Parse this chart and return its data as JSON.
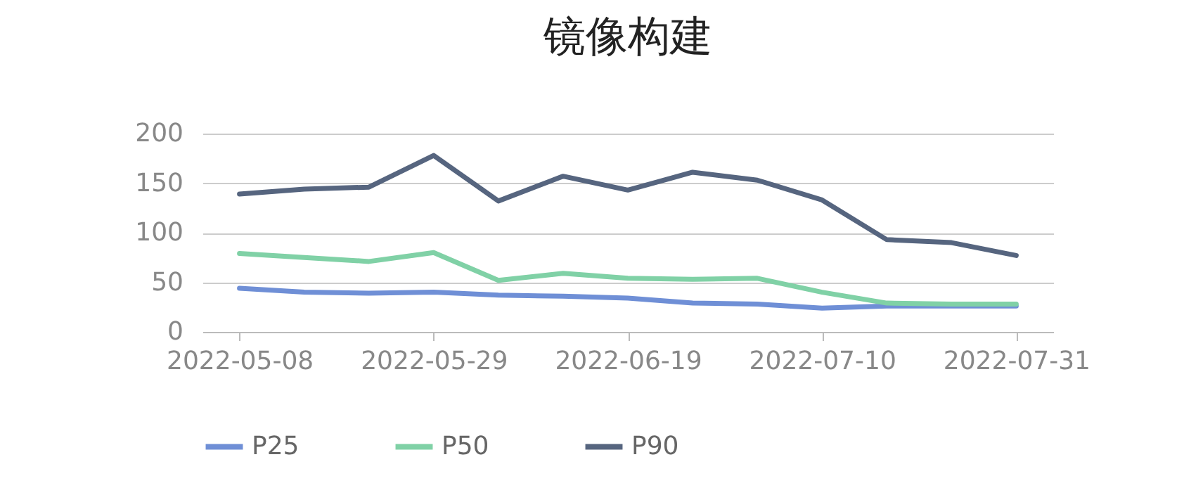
{
  "chart_data": {
    "type": "line",
    "title": "镜像构建",
    "x": [
      "2022-05-08",
      "2022-05-15",
      "2022-05-22",
      "2022-05-29",
      "2022-06-05",
      "2022-06-12",
      "2022-06-19",
      "2022-06-26",
      "2022-07-03",
      "2022-07-10",
      "2022-07-17",
      "2022-07-24",
      "2022-07-31"
    ],
    "series": [
      {
        "name": "P25",
        "color": "#6f8fd6",
        "values": [
          44,
          40,
          39,
          40,
          37,
          36,
          34,
          29,
          28,
          24,
          26,
          26,
          26
        ]
      },
      {
        "name": "P50",
        "color": "#80d1a6",
        "values": [
          79,
          75,
          71,
          80,
          52,
          59,
          54,
          53,
          54,
          40,
          29,
          28,
          28
        ]
      },
      {
        "name": "P90",
        "color": "#56657f",
        "values": [
          139,
          144,
          146,
          178,
          132,
          157,
          143,
          161,
          153,
          133,
          93,
          90,
          77
        ]
      }
    ],
    "xlim": [
      "2022-05-04",
      "2022-08-04"
    ],
    "xticks": [
      "2022-05-08",
      "2022-05-29",
      "2022-06-19",
      "2022-07-10",
      "2022-07-31"
    ],
    "ylim": [
      0,
      200
    ],
    "yticks": [
      0,
      50,
      100,
      150,
      200
    ],
    "grid": "y",
    "legend": "bottom",
    "marker": "none",
    "line_style": "solid"
  }
}
